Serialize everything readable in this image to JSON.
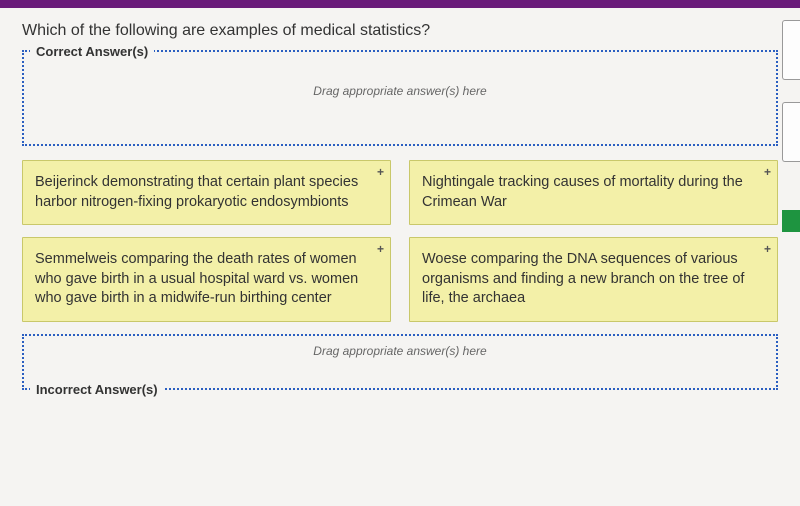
{
  "topbar_color": "#6a1b7a",
  "question_text": "Which of the following are examples of medical statistics?",
  "correct_zone": {
    "label": "Correct Answer(s)",
    "hint": "Drag appropriate answer(s) here"
  },
  "incorrect_zone": {
    "label": "Incorrect Answer(s)",
    "hint": "Drag appropriate answer(s) here"
  },
  "cards": {
    "left": [
      {
        "text": "Beijerinck demonstrating that certain plant species harbor nitrogen-fixing prokaryotic endosymbionts"
      },
      {
        "text": "Semmelweis comparing the death rates of women who gave birth in a usual hospital ward vs. women who gave birth in a midwife-run birthing center"
      }
    ],
    "right": [
      {
        "text": "Nightingale tracking causes of mortality during the Crimean War"
      },
      {
        "text": "Woese comparing the DNA sequences of various organisms and finding a new branch on the tree of life, the archaea"
      }
    ]
  },
  "plus_glyph": "+",
  "colors": {
    "card_bg": "#f3f0a8",
    "card_border": "#c9c86a",
    "drop_border": "#2b5fc1",
    "page_bg": "#f5f4f2",
    "green_accent": "#1e9440"
  }
}
